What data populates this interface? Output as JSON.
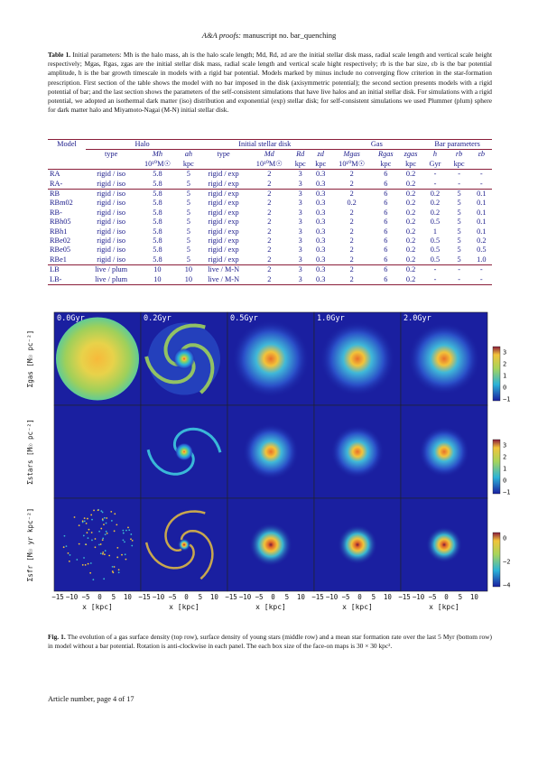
{
  "header": {
    "journal": "A&A proofs:",
    "manuscript": "manuscript no. bar_quenching"
  },
  "table1": {
    "caption_label": "Table 1.",
    "caption_text": "Initial parameters: Mh is the halo mass, ah is the halo scale length; Md, Rd, zd are the initial stellar disk mass, radial scale length and vertical scale height respectively; Mgas, Rgas, zgas are the initial stellar disk mass, radial scale length and vertical scale hight respectively; rb is the bar size, εb is the bar potential amplitude, h is the bar growth timescale in models with a rigid bar potential. Models marked by minus include no converging flow criterion in the star-formation prescription. First section of the table shows the model with no bar imposed in the disk (axisymmetric potential); the second section presents models with a rigid potential of bar; and the last section shows the parameters of the self-consistent simulations that have live halos and an initial stellar disk. For simulations with a rigid potential, we adopted an isothermal dark matter (iso) distribution and exponential (exp) stellar disk; for self-consistent simulations we used Plummer (plum) sphere for dark matter halo and Miyamoto-Nagai (M-N) initial stellar disk.",
    "group_headers": [
      "Model",
      "Halo",
      "Initial stellar disk",
      "Gas",
      "Bar parameters"
    ],
    "col_names": [
      "type",
      "Mh",
      "ah",
      "type",
      "Md",
      "Rd",
      "zd",
      "Mgas",
      "Rgas",
      "zgas",
      "h",
      "rb",
      "εb"
    ],
    "col_units": [
      "",
      "10¹⁰M☉",
      "kpc",
      "",
      "10¹⁰M☉",
      "kpc",
      "kpc",
      "10¹⁰M☉",
      "kpc",
      "kpc",
      "Gyr",
      "kpc",
      ""
    ],
    "sections": [
      [
        [
          "RA",
          "rigid / iso",
          "5.8",
          "5",
          "rigid / exp",
          "2",
          "3",
          "0.3",
          "2",
          "6",
          "0.2",
          "-",
          "-",
          "-"
        ],
        [
          "RA-",
          "rigid / iso",
          "5.8",
          "5",
          "rigid / exp",
          "2",
          "3",
          "0.3",
          "2",
          "6",
          "0.2",
          "-",
          "-",
          "-"
        ]
      ],
      [
        [
          "RB",
          "rigid / iso",
          "5.8",
          "5",
          "rigid / exp",
          "2",
          "3",
          "0.3",
          "2",
          "6",
          "0.2",
          "0.2",
          "5",
          "0.1"
        ],
        [
          "RBm02",
          "rigid / iso",
          "5.8",
          "5",
          "rigid / exp",
          "2",
          "3",
          "0.3",
          "0.2",
          "6",
          "0.2",
          "0.2",
          "5",
          "0.1"
        ],
        [
          "RB-",
          "rigid / iso",
          "5.8",
          "5",
          "rigid / exp",
          "2",
          "3",
          "0.3",
          "2",
          "6",
          "0.2",
          "0.2",
          "5",
          "0.1"
        ],
        [
          "RBh05",
          "rigid / iso",
          "5.8",
          "5",
          "rigid / exp",
          "2",
          "3",
          "0.3",
          "2",
          "6",
          "0.2",
          "0.5",
          "5",
          "0.1"
        ],
        [
          "RBh1",
          "rigid / iso",
          "5.8",
          "5",
          "rigid / exp",
          "2",
          "3",
          "0.3",
          "2",
          "6",
          "0.2",
          "1",
          "5",
          "0.1"
        ],
        [
          "RBe02",
          "rigid / iso",
          "5.8",
          "5",
          "rigid / exp",
          "2",
          "3",
          "0.3",
          "2",
          "6",
          "0.2",
          "0.5",
          "5",
          "0.2"
        ],
        [
          "RBe05",
          "rigid / iso",
          "5.8",
          "5",
          "rigid / exp",
          "2",
          "3",
          "0.3",
          "2",
          "6",
          "0.2",
          "0.5",
          "5",
          "0.5"
        ],
        [
          "RBe1",
          "rigid / iso",
          "5.8",
          "5",
          "rigid / exp",
          "2",
          "3",
          "0.3",
          "2",
          "6",
          "0.2",
          "0.5",
          "5",
          "1.0"
        ]
      ],
      [
        [
          "LB",
          "live / plum",
          "10",
          "10",
          "live / M-N",
          "2",
          "3",
          "0.3",
          "2",
          "6",
          "0.2",
          "-",
          "-",
          "-"
        ],
        [
          "LB-",
          "live / plum",
          "10",
          "10",
          "live / M-N",
          "2",
          "3",
          "0.3",
          "2",
          "6",
          "0.2",
          "-",
          "-",
          "-"
        ]
      ]
    ]
  },
  "figure1": {
    "times": [
      "0.0Gyr",
      "0.2Gyr",
      "0.5Gyr",
      "1.0Gyr",
      "2.0Gyr"
    ],
    "row_labels": [
      "Σgas  [M☉ pc⁻²]",
      "Σstars  [M☉ pc⁻²]",
      "Σsfr  [M☉ yr kpc⁻²]"
    ],
    "colorbar_ticks": [
      [
        "3",
        "2",
        "1",
        "0",
        "−1"
      ],
      [
        "3",
        "2",
        "1",
        "0",
        "−1"
      ],
      [
        "0",
        "−2",
        "−4"
      ]
    ],
    "x_ticks": [
      "−15",
      "−10",
      "−5",
      "0",
      "5",
      "10"
    ],
    "x_label": "x [kpc]",
    "colors": {
      "background": "#1a1fa0",
      "mid": "#2bb3d8",
      "high": "#f2c33a",
      "peak": "#e0682a"
    }
  },
  "fig1_caption": {
    "label": "Fig. 1.",
    "text": "The evolution of a gas surface density (top row), surface density of young stars (middle row) and a mean star formation rate over the last 5 Myr (bottom row) in model without a bar potential. Rotation is anti-clockwise in each panel. The each box size of the face-on maps is 30 × 30 kpc²."
  },
  "footer": {
    "text": "Article number, page 4 of 17"
  }
}
